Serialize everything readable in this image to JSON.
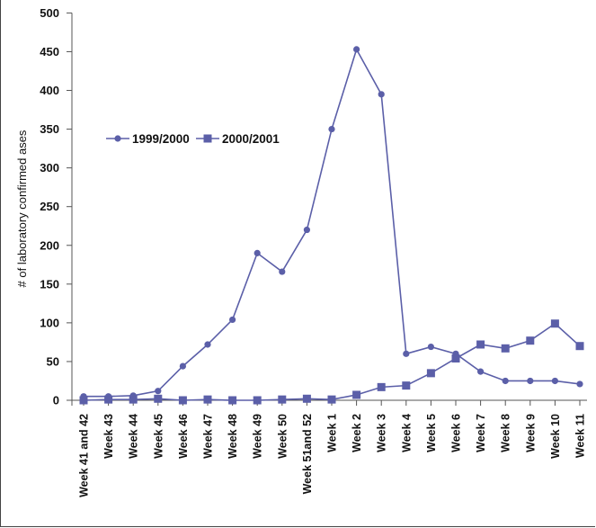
{
  "chart_data": {
    "type": "line",
    "title": "",
    "xlabel": "",
    "ylabel": "# of laboratory confirmed ases",
    "ylim": [
      0,
      500
    ],
    "yticks": [
      0,
      50,
      100,
      150,
      200,
      250,
      300,
      350,
      400,
      450,
      500
    ],
    "grid": false,
    "legend_position": "upper-left",
    "categories": [
      "Week 41 and 42",
      "Week 43",
      "Week 44",
      "Week 45",
      "Week 46",
      "Week 47",
      "Week 48",
      "Week 49",
      "Week 50",
      "Week 51and 52",
      "Week 1",
      "Week 2",
      "Week 3",
      "Week 4",
      "Week 5",
      "Week 6",
      "Week 7",
      "Week 8",
      "Week 9",
      "Week 10",
      "Week 11"
    ],
    "series": [
      {
        "name": "1999/2000",
        "marker": "circle",
        "color": "#5b5fa8",
        "values": [
          5,
          5,
          6,
          12,
          44,
          72,
          104,
          190,
          166,
          220,
          350,
          453,
          395,
          60,
          69,
          60,
          37,
          25,
          25,
          25,
          21
        ]
      },
      {
        "name": "2000/2001",
        "marker": "square",
        "color": "#5b5fa8",
        "values": [
          0,
          1,
          1,
          2,
          0,
          1,
          0,
          0,
          1,
          2,
          1,
          7,
          17,
          19,
          35,
          54,
          72,
          67,
          77,
          99,
          70
        ]
      }
    ]
  }
}
